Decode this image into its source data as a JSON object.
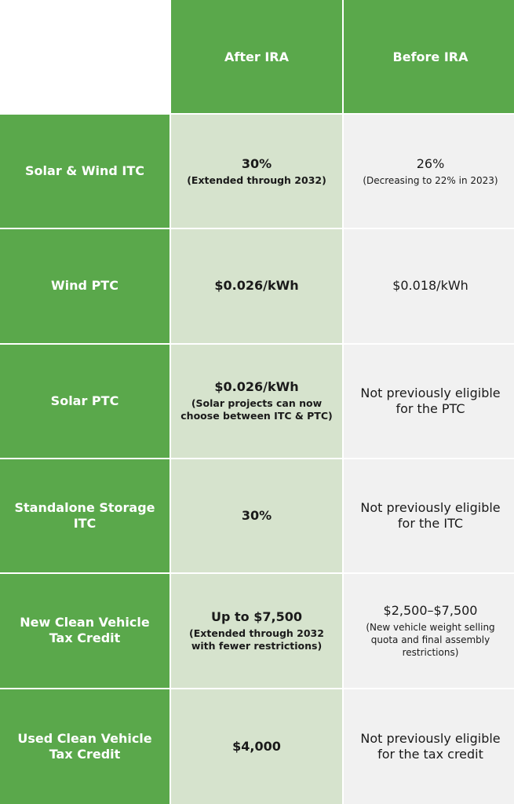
{
  "header": {
    "after_label": "After IRA",
    "before_label": "Before IRA"
  },
  "rows": [
    {
      "label": "Solar & Wind ITC",
      "after": {
        "main": "30%",
        "note": "(Extended through 2032)"
      },
      "before": {
        "main": "26%",
        "note": "(Decreasing to 22% in 2023)"
      }
    },
    {
      "label": "Wind PTC",
      "after": {
        "main": "$0.026/kWh",
        "note": ""
      },
      "before": {
        "main": "$0.018/kWh",
        "note": ""
      }
    },
    {
      "label": "Solar PTC",
      "after": {
        "main": "$0.026/kWh",
        "note": "(Solar projects can now choose between ITC & PTC)"
      },
      "before": {
        "main": "Not previously eligible for the PTC",
        "note": ""
      }
    },
    {
      "label": "Standalone Storage ITC",
      "after": {
        "main": "30%",
        "note": ""
      },
      "before": {
        "main": "Not previously eligible for the ITC",
        "note": ""
      }
    },
    {
      "label": "New Clean Vehicle Tax Credit",
      "after": {
        "main": "Up to $7,500",
        "note": "(Extended through 2032 with fewer restrictions)"
      },
      "before": {
        "main": "$2,500–$7,500",
        "note": "(New vehicle weight selling quota and final assembly restrictions)"
      }
    },
    {
      "label": "Used Clean Vehicle Tax Credit",
      "after": {
        "main": "$4,000",
        "note": ""
      },
      "before": {
        "main": "Not previously eligible for the tax credit",
        "note": ""
      }
    }
  ],
  "colors": {
    "header_green": "#5aa84b",
    "after_bg": "#d6e3cd",
    "before_bg": "#f1f1f1"
  }
}
